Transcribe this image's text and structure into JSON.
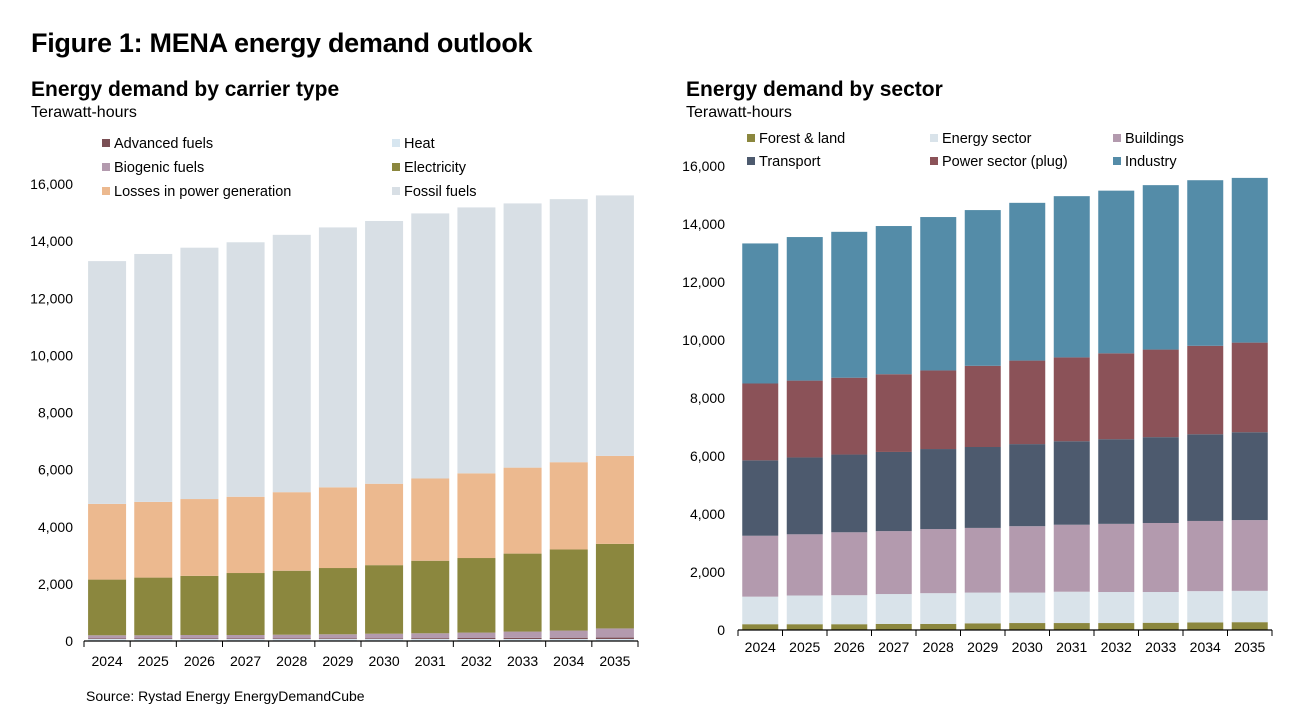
{
  "figure_title": "Figure 1: MENA energy demand outlook",
  "source": "Source: Rystad Energy EnergyDemandCube",
  "chart_data": [
    {
      "type": "bar",
      "stacked": true,
      "title": "Energy demand by carrier type",
      "subtitle": "Terawatt-hours",
      "categories": [
        "2024",
        "2025",
        "2026",
        "2027",
        "2028",
        "2029",
        "2030",
        "2031",
        "2032",
        "2033",
        "2034",
        "2035"
      ],
      "ylim": [
        0,
        16000
      ],
      "yticks": [
        0,
        2000,
        4000,
        6000,
        8000,
        10000,
        12000,
        14000,
        16000
      ],
      "ytick_labels": [
        "0",
        "2,000",
        "4,000",
        "6,000",
        "8,000",
        "10,000",
        "12,000",
        "14,000",
        "16,000"
      ],
      "grid": false,
      "legend_order": [
        "Advanced fuels",
        "Heat",
        "Biogenic fuels",
        "Electricity",
        "Losses in power generation",
        "Fossil fuels"
      ],
      "series": [
        {
          "name": "Heat",
          "color": "#d7e6f0",
          "values": [
            70,
            70,
            70,
            70,
            70,
            70,
            70,
            70,
            70,
            70,
            70,
            70
          ]
        },
        {
          "name": "Advanced fuels",
          "color": "#7a4f55",
          "values": [
            20,
            20,
            20,
            20,
            20,
            25,
            25,
            30,
            35,
            40,
            45,
            50
          ]
        },
        {
          "name": "Biogenic fuels",
          "color": "#b39aae",
          "values": [
            110,
            110,
            120,
            120,
            130,
            140,
            160,
            170,
            190,
            220,
            250,
            320
          ]
        },
        {
          "name": "Electricity",
          "color": "#8b873e",
          "values": [
            1950,
            2020,
            2070,
            2170,
            2240,
            2320,
            2400,
            2540,
            2610,
            2730,
            2840,
            2960
          ]
        },
        {
          "name": "Losses in power generation",
          "color": "#ecb98f",
          "values": [
            2650,
            2650,
            2690,
            2670,
            2750,
            2825,
            2850,
            2880,
            2965,
            3010,
            3055,
            3080
          ]
        },
        {
          "name": "Fossil fuels",
          "color": "#d8dfe5",
          "values": [
            8500,
            8680,
            8800,
            8910,
            9010,
            9100,
            9200,
            9280,
            9310,
            9250,
            9210,
            9120
          ]
        }
      ]
    },
    {
      "type": "bar",
      "stacked": true,
      "title": "Energy demand by sector",
      "subtitle": "Terawatt-hours",
      "categories": [
        "2024",
        "2025",
        "2026",
        "2027",
        "2028",
        "2029",
        "2030",
        "2031",
        "2032",
        "2033",
        "2034",
        "2035"
      ],
      "ylim": [
        0,
        16000
      ],
      "yticks": [
        0,
        2000,
        4000,
        6000,
        8000,
        10000,
        12000,
        14000,
        16000
      ],
      "ytick_labels": [
        "0",
        "2,000",
        "4,000",
        "6,000",
        "8,000",
        "10,000",
        "12,000",
        "14,000",
        "16,000"
      ],
      "grid": false,
      "legend_order": [
        "Forest & land",
        "Energy sector",
        "Buildings",
        "Transport",
        "Power sector (plug)",
        "Industry"
      ],
      "series": [
        {
          "name": "Forest & land",
          "color": "#8b873e",
          "values": [
            200,
            200,
            200,
            210,
            210,
            230,
            240,
            240,
            240,
            250,
            260,
            270
          ]
        },
        {
          "name": "Energy sector",
          "color": "#d9e3ea",
          "values": [
            950,
            990,
            1000,
            1030,
            1060,
            1060,
            1050,
            1080,
            1070,
            1060,
            1080,
            1080
          ]
        },
        {
          "name": "Buildings",
          "color": "#b39aae",
          "values": [
            2100,
            2110,
            2170,
            2170,
            2210,
            2230,
            2290,
            2310,
            2350,
            2380,
            2420,
            2440
          ]
        },
        {
          "name": "Transport",
          "color": "#4d5a6e",
          "values": [
            2600,
            2650,
            2680,
            2730,
            2760,
            2790,
            2830,
            2880,
            2920,
            2960,
            2990,
            3030
          ]
        },
        {
          "name": "Power sector (plug)",
          "color": "#8b5258",
          "values": [
            2650,
            2650,
            2650,
            2680,
            2710,
            2800,
            2880,
            2890,
            2960,
            3020,
            3050,
            3090
          ]
        },
        {
          "name": "Industry",
          "color": "#548ca8",
          "values": [
            4830,
            4950,
            5030,
            5110,
            5290,
            5370,
            5440,
            5560,
            5610,
            5670,
            5710,
            5680
          ]
        }
      ]
    }
  ]
}
